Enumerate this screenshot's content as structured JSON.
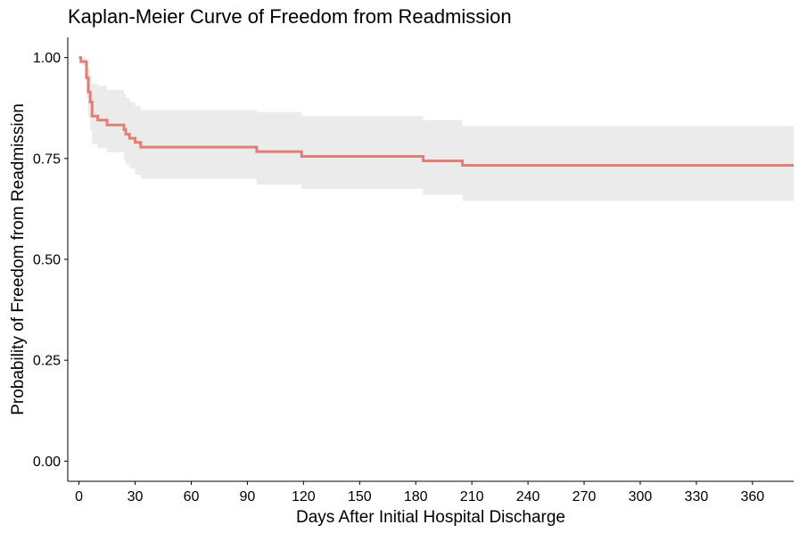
{
  "chart_data": {
    "type": "line",
    "title": "Kaplan-Meier Curve of Freedom from Readmission",
    "xlabel": "Days After Initial Hospital Discharge",
    "ylabel": "Probability of Freedom from Readmission",
    "xlim": [
      -6,
      382
    ],
    "ylim": [
      -0.05,
      1.05
    ],
    "x_ticks": [
      0,
      30,
      60,
      90,
      120,
      150,
      180,
      210,
      240,
      270,
      300,
      330,
      360
    ],
    "y_ticks": [
      0.0,
      0.25,
      0.5,
      0.75,
      1.0
    ],
    "y_tick_labels": [
      "0.00",
      "0.25",
      "0.50",
      "0.75",
      "1.00"
    ],
    "grid": false,
    "legend": "none",
    "colors": {
      "curve": "#e07f75",
      "band": "#ebebeb"
    },
    "series": [
      {
        "x": [
          0,
          1,
          2,
          4,
          5,
          6,
          7,
          10,
          15,
          24,
          25,
          27,
          30,
          33,
          34,
          95,
          119,
          184,
          205,
          382
        ],
        "y": [
          1.0,
          0.99,
          0.99,
          0.95,
          0.915,
          0.89,
          0.855,
          0.845,
          0.833,
          0.822,
          0.81,
          0.8,
          0.79,
          0.778,
          0.778,
          0.767,
          0.755,
          0.744,
          0.733,
          0.733
        ],
        "lower": [
          1.0,
          0.99,
          0.98,
          0.9,
          0.85,
          0.82,
          0.785,
          0.775,
          0.765,
          0.745,
          0.735,
          0.725,
          0.71,
          0.7,
          0.7,
          0.685,
          0.675,
          0.66,
          0.645,
          0.645
        ],
        "upper": [
          1.0,
          1.0,
          1.0,
          0.99,
          0.975,
          0.955,
          0.935,
          0.93,
          0.92,
          0.91,
          0.9,
          0.89,
          0.88,
          0.87,
          0.87,
          0.865,
          0.855,
          0.845,
          0.83,
          0.83
        ]
      }
    ]
  }
}
